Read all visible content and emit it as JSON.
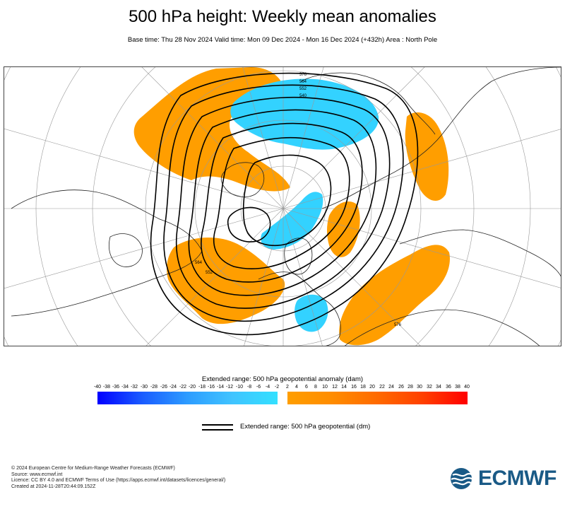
{
  "title": "500 hPa height: Weekly mean anomalies",
  "subtitle": "Base time: Thu 28 Nov 2024 Valid time: Mon 09 Dec 2024 - Mon 16 Dec 2024 (+432h) Area : North Pole",
  "map": {
    "contour_labels": [
      "576",
      "564",
      "552",
      "540",
      "564",
      "552",
      "576"
    ]
  },
  "legend": {
    "anomaly_title": "Extended range: 500 hPa geopotential anomaly (dam)",
    "negative_ticks": [
      "-40",
      "-38",
      "-36",
      "-34",
      "-32",
      "-30",
      "-28",
      "-26",
      "-24",
      "-22",
      "-20",
      "-18",
      "-16",
      "-14",
      "-12",
      "-10",
      "-8",
      "-6",
      "-4",
      "-2"
    ],
    "positive_ticks": [
      "2",
      "4",
      "6",
      "8",
      "10",
      "12",
      "14",
      "16",
      "18",
      "20",
      "22",
      "24",
      "26",
      "28",
      "30",
      "32",
      "34",
      "36",
      "38",
      "40"
    ],
    "negative_colors": [
      "#0000ff",
      "#33e0ff"
    ],
    "positive_colors": [
      "#ff9e00",
      "#ff0000"
    ],
    "geopotential_label": "Extended range: 500 hPa geopotential (dm)"
  },
  "footer": {
    "line1": "© 2024 European Centre for Medium-Range Weather Forecasts (ECMWF)",
    "line2": "Source: www.ecmwf.int",
    "line3": "Licence: CC BY 4.0 and ECMWF Terms of Use (https://apps.ecmwf.int/datasets/licences/general/)",
    "line4": "Created at 2024-11-28T20:44:09.152Z"
  },
  "logo": {
    "text": "ECMWF",
    "color": "#1a5a86"
  }
}
